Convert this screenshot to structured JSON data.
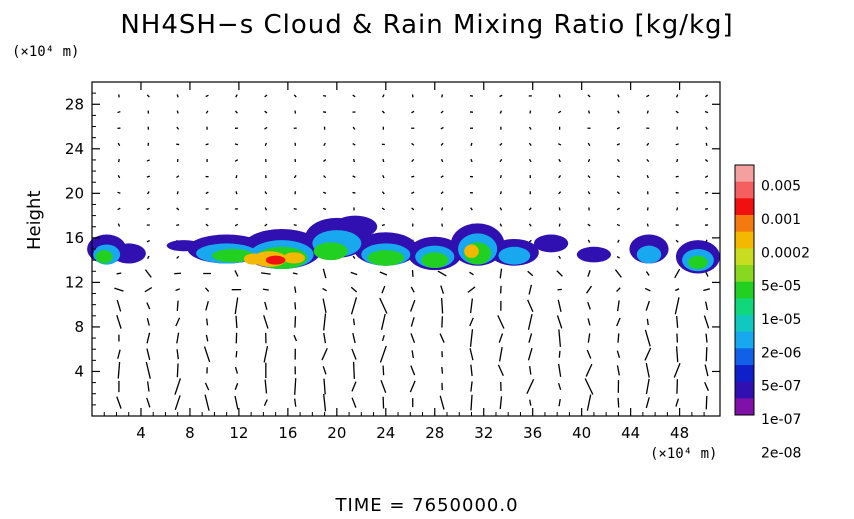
{
  "title": "NH4SH−s Cloud & Rain Mixing Ratio [kg/kg]",
  "y_unit": "(×10⁴ m)",
  "x_unit": "(×10⁴ m)",
  "y_label": "Height",
  "footer": "TIME  =  7650000.0",
  "chart_data": {
    "type": "heatmap",
    "title": "NH4SH−s Cloud & Rain Mixing Ratio [kg/kg]",
    "ylabel": "Height",
    "xlim": [
      0,
      51.3
    ],
    "ylim": [
      0,
      30
    ],
    "x_ticks": [
      4,
      8,
      12,
      16,
      20,
      24,
      28,
      32,
      36,
      40,
      44,
      48
    ],
    "y_ticks": [
      4,
      8,
      12,
      16,
      20,
      24,
      28
    ],
    "colorbar": {
      "labels": [
        "0.005",
        "0.001",
        "0.0002",
        "5e-05",
        "1e-05",
        "2e-06",
        "5e-07",
        "1e-07",
        "2e-08"
      ],
      "colors": [
        "#f4a0a0",
        "#f46060",
        "#f01010",
        "#f47a10",
        "#f4b800",
        "#c8dc20",
        "#88d820",
        "#22d022",
        "#10d87a",
        "#10c8c0",
        "#18a8f0",
        "#1060e8",
        "#1020c8",
        "#3010b0",
        "#8010a8"
      ]
    },
    "cloud_layer": {
      "y_range": [
        13,
        18
      ],
      "max_value_near_x": 15,
      "max_value_near_y": 14
    }
  }
}
